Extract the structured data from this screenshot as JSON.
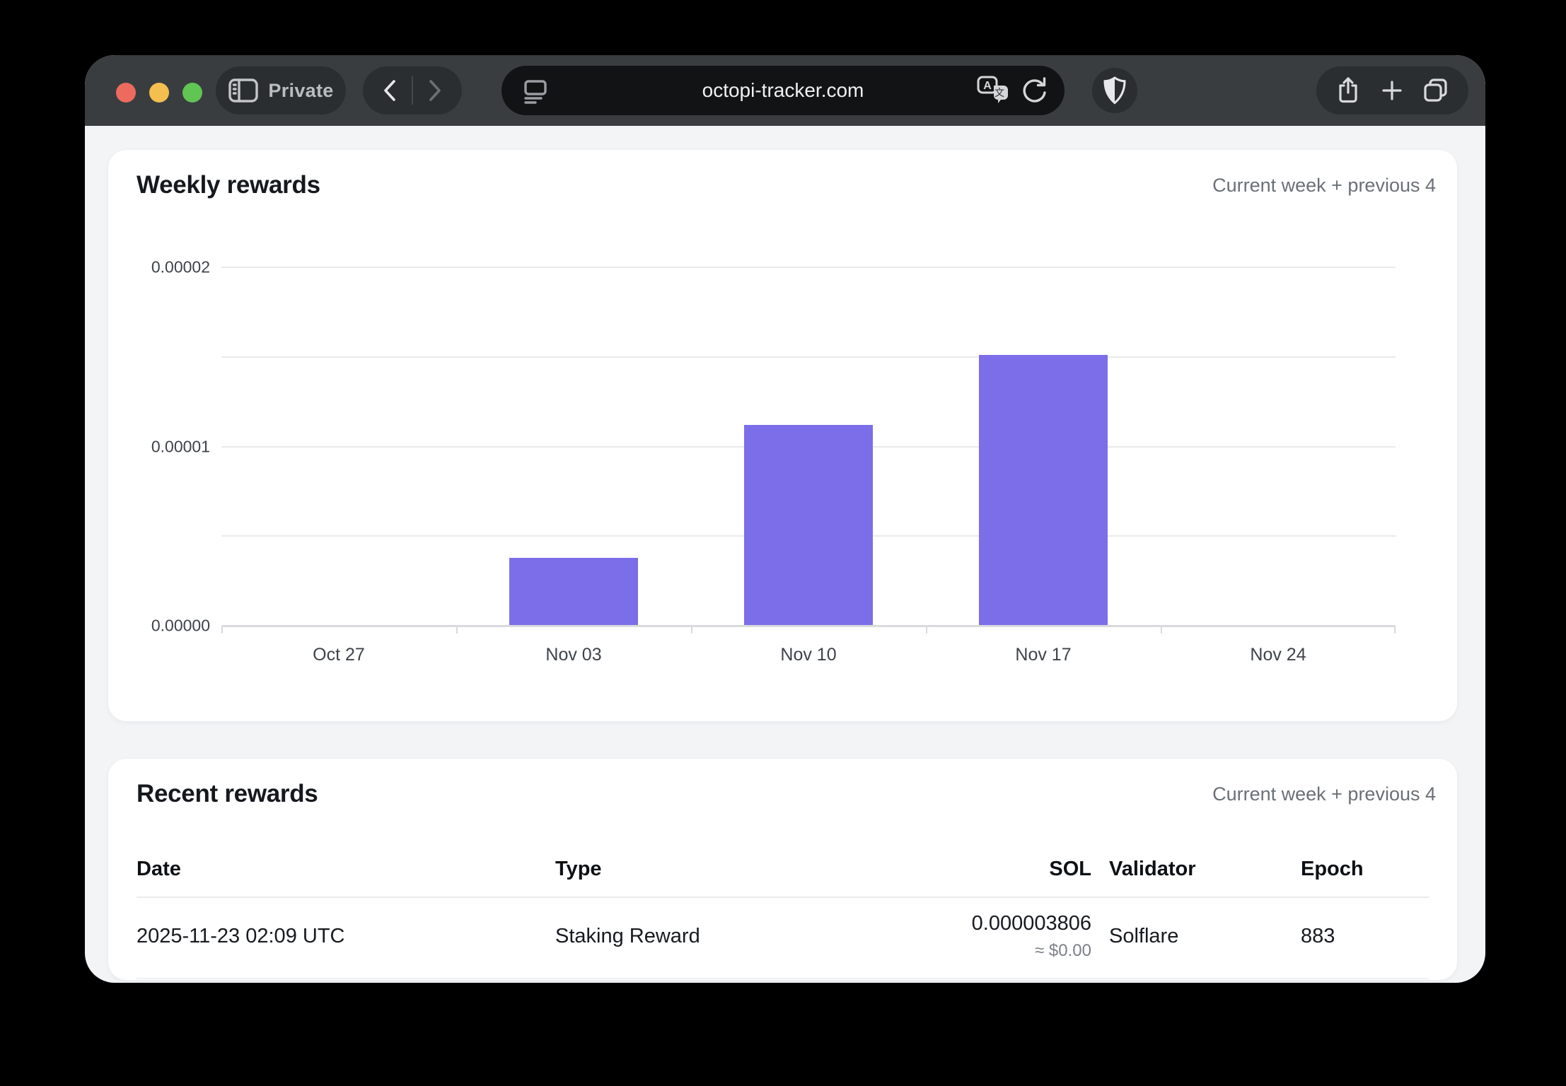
{
  "browser": {
    "private_label": "Private",
    "url": "octopi-tracker.com",
    "icons": {
      "traffic": [
        "close-circle",
        "minimize-circle",
        "zoom-circle"
      ],
      "left_group": [
        "sidebar-icon",
        "back-icon",
        "forward-icon"
      ],
      "urlbar": [
        "reader-icon",
        "translate-icon",
        "reload-icon"
      ],
      "right_group": [
        "privacy-shield-icon",
        "share-icon",
        "new-tab-icon",
        "tab-overview-icon"
      ]
    },
    "colors": {
      "traffic_red": "#ed6a5e",
      "traffic_yellow": "#f4bf4f",
      "traffic_green": "#61c554",
      "toolbar_bg": "#3a3d40",
      "pill_bg": "#2b2e31",
      "urlbar_bg": "#121315"
    }
  },
  "weekly_card": {
    "title": "Weekly rewards",
    "subtitle": "Current week + previous 4"
  },
  "chart_data": {
    "type": "bar",
    "title": "Weekly rewards",
    "categories": [
      "Oct 27",
      "Nov 03",
      "Nov 10",
      "Nov 17",
      "Nov 24"
    ],
    "values": [
      0,
      3.8e-06,
      1.12e-05,
      1.51e-05,
      0
    ],
    "ylim": [
      0,
      2e-05
    ],
    "gridline_values": [
      0,
      5e-06,
      1e-05,
      1.5e-05,
      2e-05
    ],
    "yticks": [
      {
        "value": 0,
        "label": "0.00000"
      },
      {
        "value": 1e-05,
        "label": "0.00001"
      },
      {
        "value": 2e-05,
        "label": "0.00002"
      }
    ],
    "bar_color": "#7c6ee8",
    "legend": "none",
    "grid": "horizontal"
  },
  "recent_card": {
    "title": "Recent rewards",
    "subtitle": "Current week + previous 4",
    "table": {
      "headers": [
        "Date",
        "Type",
        "SOL",
        "Validator",
        "Epoch"
      ],
      "rows": [
        {
          "date": "2025-11-23 02:09 UTC",
          "type": "Staking Reward",
          "sol": "0.000003806",
          "usd": "≈ $0.00",
          "validator": "Solflare",
          "epoch": "883"
        }
      ]
    }
  }
}
